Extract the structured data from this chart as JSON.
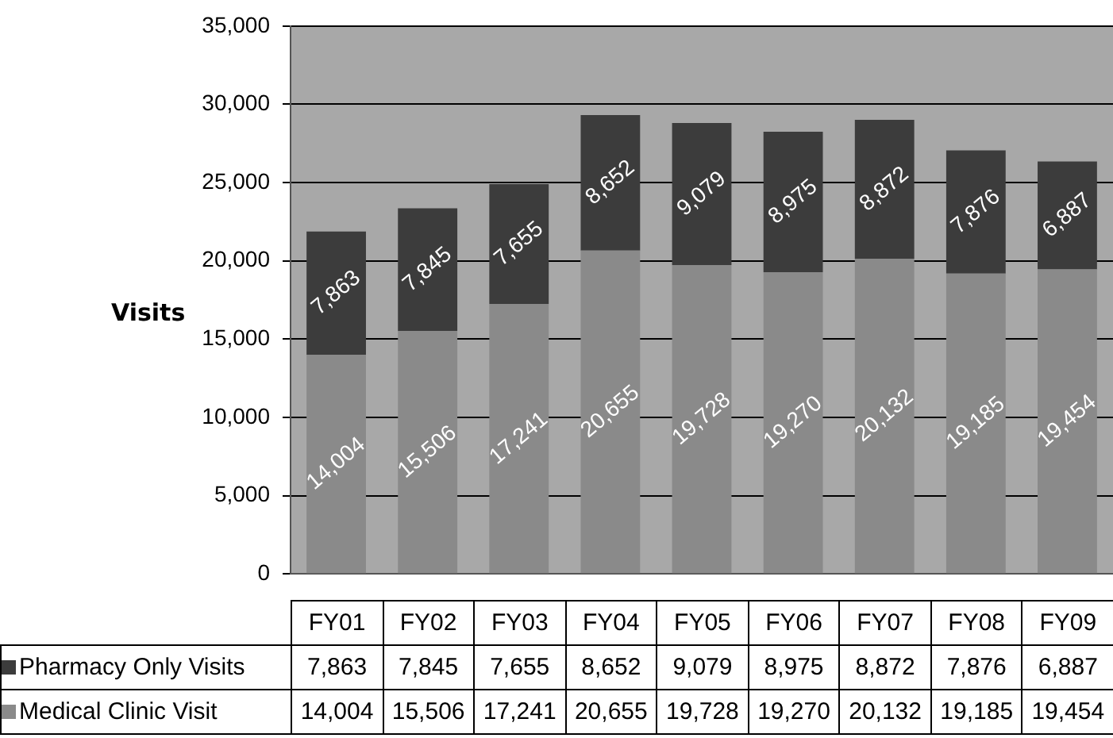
{
  "chart_data": {
    "type": "bar",
    "stacked": true,
    "ylabel": "Visits",
    "categories": [
      "FY01",
      "FY02",
      "FY03",
      "FY04",
      "FY05",
      "FY06",
      "FY07",
      "FY08",
      "FY09"
    ],
    "series": [
      {
        "name": "Medical Clinic Visit",
        "color": "#8a8a8a",
        "values": [
          14004,
          15506,
          17241,
          20655,
          19728,
          19270,
          20132,
          19185,
          19454
        ],
        "value_labels": [
          "14,004",
          "15,506",
          "17,241",
          "20,655",
          "19,728",
          "19,270",
          "20,132",
          "19,185",
          "19,454"
        ]
      },
      {
        "name": "Pharmacy Only Visits",
        "color": "#3c3c3c",
        "values": [
          7863,
          7845,
          7655,
          8652,
          9079,
          8975,
          8872,
          7876,
          6887
        ],
        "value_labels": [
          "7,863",
          "7,845",
          "7,655",
          "8,652",
          "9,079",
          "8,975",
          "8,872",
          "7,876",
          "6,887"
        ]
      }
    ],
    "ylim": [
      0,
      35000
    ],
    "yticks": [
      0,
      {
        "value": 5000,
        "label": "5,000"
      },
      {
        "value": 10000,
        "label": "10,000"
      },
      {
        "value": 15000,
        "label": "15,000"
      },
      {
        "value": 20000,
        "label": "20,000"
      },
      {
        "value": 25000,
        "label": "25,000"
      },
      {
        "value": 30000,
        "label": "30,000"
      },
      {
        "value": 35000,
        "label": "35,000"
      }
    ],
    "grid": "y",
    "legend": "bottom"
  }
}
